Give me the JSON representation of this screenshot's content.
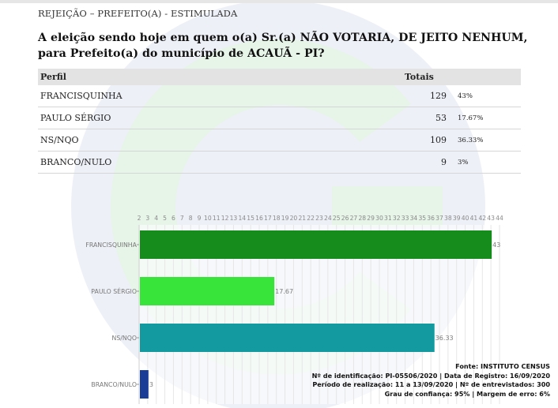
{
  "header": {
    "subtitle": "REJEIÇÃO – PREFEITO(A) - ESTIMULADA",
    "question": "A eleição sendo hoje em quem o(a) Sr.(a) NÃO VOTARIA, DE JEITO NENHUM, para Prefeito(a) do município de ACAUÃ - PI?"
  },
  "table": {
    "col_profile": "Perfil",
    "col_totals": "Totais",
    "rows": [
      {
        "name": "FRANCISQUINHA",
        "count": "129",
        "pct": "43%"
      },
      {
        "name": "PAULO SÉRGIO",
        "count": "53",
        "pct": "17.67%"
      },
      {
        "name": "NS/NQO",
        "count": "109",
        "pct": "36.33%"
      },
      {
        "name": "BRANCO/NULO",
        "count": "9",
        "pct": "3%"
      }
    ]
  },
  "chart_data": {
    "type": "bar",
    "orientation": "horizontal",
    "categories": [
      "FRANCISQUINHA",
      "PAULO SÉRGIO",
      "NS/NQO",
      "BRANCO/NULO"
    ],
    "values": [
      43,
      17.67,
      36.33,
      3
    ],
    "value_labels": [
      "43",
      "17.67",
      "36.33",
      "3"
    ],
    "colors": [
      "#168c1c",
      "#38e33a",
      "#139aa0",
      "#1b3d96"
    ],
    "xlim": [
      2,
      44
    ],
    "xticks": [
      2,
      3,
      4,
      5,
      6,
      7,
      8,
      9,
      10,
      11,
      12,
      13,
      14,
      15,
      16,
      17,
      18,
      19,
      20,
      21,
      22,
      23,
      24,
      25,
      26,
      27,
      28,
      29,
      30,
      31,
      32,
      33,
      34,
      35,
      36,
      37,
      38,
      39,
      40,
      41,
      42,
      43,
      44
    ],
    "xtick_position": "top",
    "grid": true
  },
  "footer": {
    "source": "Fonte: INSTITUTO CENSUS",
    "line2": "Nº de identificação: PI-05506/2020 | Data de Registro: 16/09/2020",
    "line3": "Período de realização: 11 a 13/09/2020 | Nº de entrevistados: 300",
    "line4": "Grau de confiança: 95% | Margem de erro: 6%"
  },
  "colors": {
    "watermark_green": "#e9f5ea",
    "watermark_blue": "#eef0f8",
    "header_gray": "#e3e3e3"
  }
}
